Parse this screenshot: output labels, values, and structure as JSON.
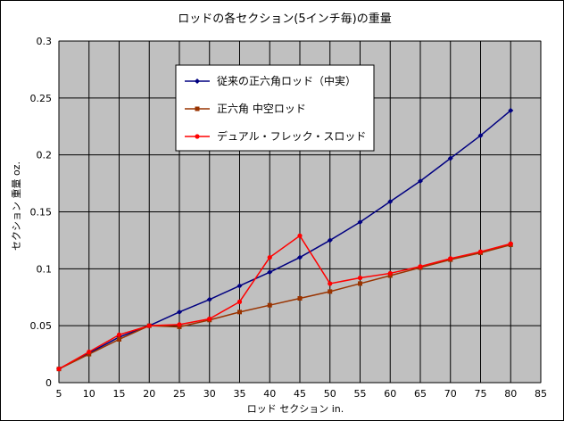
{
  "chart_data": {
    "type": "line",
    "title": "ロッドの各セクション(5インチ毎)の重量",
    "xlabel": "ロッド セクション in.",
    "ylabel": "セクション 重量 oz.",
    "xlim": [
      5,
      85
    ],
    "ylim": [
      0,
      0.3
    ],
    "x_ticks": [
      5,
      10,
      15,
      20,
      25,
      30,
      35,
      40,
      45,
      50,
      55,
      60,
      65,
      70,
      75,
      80,
      85
    ],
    "y_ticks": [
      0,
      0.05,
      0.1,
      0.15,
      0.2,
      0.25,
      0.3
    ],
    "y_tick_labels": [
      "0",
      "0.05",
      "0.1",
      "0.15",
      "0.2",
      "0.25",
      "0.3"
    ],
    "grid": true,
    "legend_position": "top-center",
    "plot_background": "#c0c0c0",
    "series": [
      {
        "name": "従来の正六角ロッド（中実）",
        "color": "#000080",
        "marker": "diamond",
        "x": [
          5,
          10,
          15,
          20,
          25,
          30,
          35,
          40,
          45,
          50,
          55,
          60,
          65,
          70,
          75,
          80
        ],
        "values": [
          0.012,
          0.026,
          0.04,
          0.05,
          0.062,
          0.073,
          0.085,
          0.097,
          0.11,
          0.125,
          0.141,
          0.159,
          0.177,
          0.197,
          0.217,
          0.239
        ]
      },
      {
        "name": "正六角 中空ロッド",
        "color": "#993300",
        "marker": "square",
        "x": [
          5,
          10,
          15,
          20,
          25,
          30,
          35,
          40,
          45,
          50,
          55,
          60,
          65,
          70,
          75,
          80
        ],
        "values": [
          0.012,
          0.025,
          0.038,
          0.05,
          0.049,
          0.055,
          0.062,
          0.068,
          0.074,
          0.08,
          0.087,
          0.094,
          0.101,
          0.108,
          0.114,
          0.121
        ]
      },
      {
        "name": "デュアル・フレック・スロッド",
        "color": "#ff0000",
        "marker": "circle",
        "x": [
          5,
          10,
          15,
          20,
          25,
          30,
          35,
          40,
          45,
          50,
          55,
          60,
          65,
          70,
          75,
          80
        ],
        "values": [
          0.012,
          0.027,
          0.042,
          0.05,
          0.051,
          0.056,
          0.071,
          0.11,
          0.129,
          0.087,
          0.092,
          0.096,
          0.102,
          0.109,
          0.115,
          0.122
        ]
      }
    ]
  }
}
